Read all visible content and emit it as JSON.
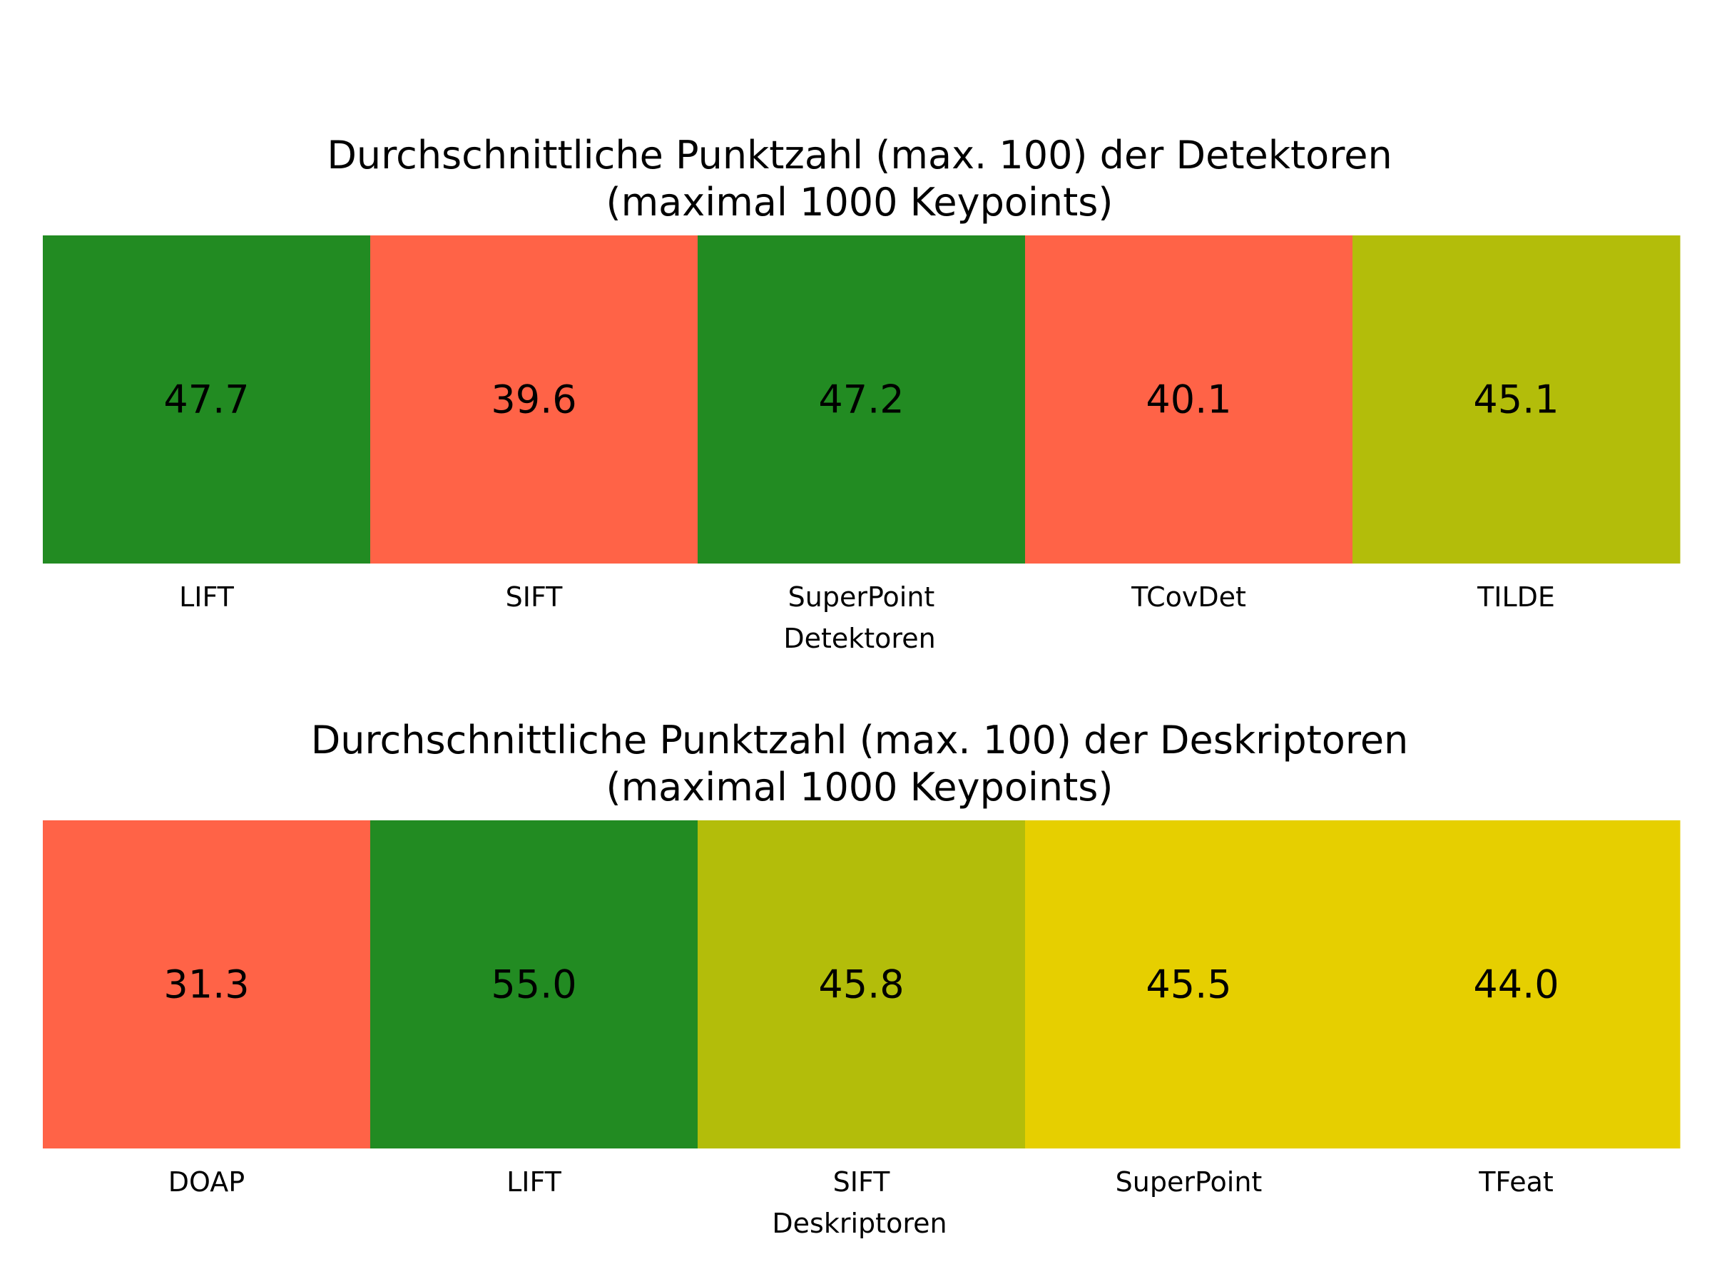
{
  "chart_data": [
    {
      "type": "heatmap",
      "title": "Durchschnittliche Punktzahl (max. 100) der Detektoren",
      "subtitle": "(maximal 1000 Keypoints)",
      "xlabel": "Detektoren",
      "ylabel": "",
      "categories": [
        "LIFT",
        "SIFT",
        "SuperPoint",
        "TCovDet",
        "TILDE"
      ],
      "values": [
        47.7,
        39.6,
        47.2,
        40.1,
        45.1
      ],
      "value_labels": [
        "47.7",
        "39.6",
        "47.2",
        "40.1",
        "45.1"
      ],
      "colors": [
        "#228b22",
        "#ff6347",
        "#228b22",
        "#ff6347",
        "#b3bd0a"
      ]
    },
    {
      "type": "heatmap",
      "title": "Durchschnittliche Punktzahl (max. 100) der Deskriptoren",
      "subtitle": "(maximal 1000 Keypoints)",
      "xlabel": "Deskriptoren",
      "ylabel": "",
      "categories": [
        "DOAP",
        "LIFT",
        "SIFT",
        "SuperPoint",
        "TFeat"
      ],
      "values": [
        31.3,
        55.0,
        45.8,
        45.5,
        44.0
      ],
      "value_labels": [
        "31.3",
        "55.0",
        "45.8",
        "45.5",
        "44.0"
      ],
      "colors": [
        "#ff6347",
        "#228b22",
        "#b3bd0a",
        "#e6cf00",
        "#e6cf00"
      ]
    }
  ]
}
